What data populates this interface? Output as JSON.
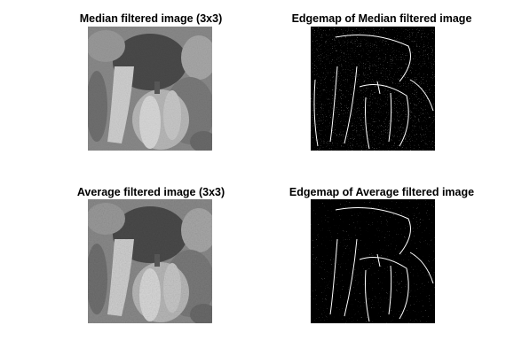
{
  "panels": [
    {
      "title": "Median filtered image (3x3)",
      "kind": "photo"
    },
    {
      "title": "Edgemap of Median filtered image",
      "kind": "edgemap"
    },
    {
      "title": "Average filtered image (3x3)",
      "kind": "photo"
    },
    {
      "title": "Edgemap of Average filtered image",
      "kind": "edgemap"
    }
  ],
  "colors": {
    "background": "#ffffff",
    "edge_bg": "#000000",
    "edge_line": "#ffffff"
  }
}
